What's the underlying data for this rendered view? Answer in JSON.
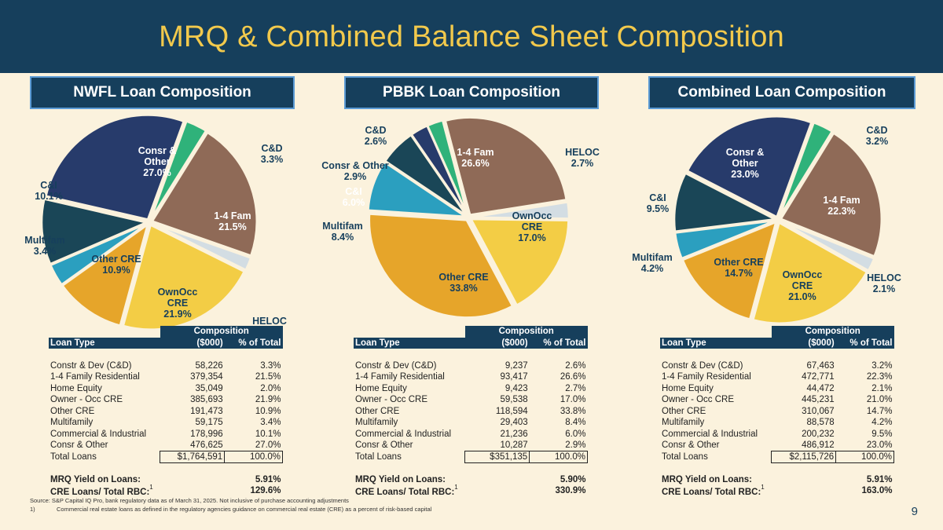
{
  "title": "MRQ & Combined Balance Sheet Composition",
  "colors": {
    "navy": "#163f5c",
    "gold": "#f2c94c",
    "C&D": "#2fb27a",
    "1-4 Fam": "#8f6a57",
    "HELOC": "#d3dde3",
    "OwnOcc CRE": "#f3cd45",
    "Other CRE": "#e6a52a",
    "Multifam": "#2b9fbf",
    "C&I": "#1a4657",
    "Consr & Other": "#273b6b"
  },
  "table_headers": {
    "composition": "Composition",
    "loan_type": "Loan Type",
    "amount": "($000)",
    "pct": "% of Total",
    "mrq_yield": "MRQ Yield on Loans:",
    "cre_rbc": "CRE Loans/ Total RBC:",
    "footnote_ref": "1"
  },
  "panels": [
    {
      "title": "NWFL Loan Composition",
      "rows": [
        {
          "type": "Constr & Dev (C&D)",
          "amount": "58,226",
          "pct": "3.3%"
        },
        {
          "type": "1-4 Family Residential",
          "amount": "379,354",
          "pct": "21.5%"
        },
        {
          "type": "Home Equity",
          "amount": "35,049",
          "pct": "2.0%"
        },
        {
          "type": "Owner - Occ CRE",
          "amount": "385,693",
          "pct": "21.9%"
        },
        {
          "type": "Other CRE",
          "amount": "191,473",
          "pct": "10.9%"
        },
        {
          "type": "Multifamily",
          "amount": "59,175",
          "pct": "3.4%"
        },
        {
          "type": "Commercial & Industrial",
          "amount": "178,996",
          "pct": "10.1%"
        },
        {
          "type": "Consr & Other",
          "amount": "476,625",
          "pct": "27.0%"
        }
      ],
      "total": {
        "type": "Total Loans",
        "amount": "$1,764,591",
        "pct": "100.0%"
      },
      "mrq_yield": "5.91%",
      "cre_rbc": "129.6%"
    },
    {
      "title": "PBBK Loan Composition",
      "rows": [
        {
          "type": "Constr & Dev (C&D)",
          "amount": "9,237",
          "pct": "2.6%"
        },
        {
          "type": "1-4 Family Residential",
          "amount": "93,417",
          "pct": "26.6%"
        },
        {
          "type": "Home Equity",
          "amount": "9,423",
          "pct": "2.7%"
        },
        {
          "type": "Owner - Occ CRE",
          "amount": "59,538",
          "pct": "17.0%"
        },
        {
          "type": "Other CRE",
          "amount": "118,594",
          "pct": "33.8%"
        },
        {
          "type": "Multifamily",
          "amount": "29,403",
          "pct": "8.4%"
        },
        {
          "type": "Commercial & Industrial",
          "amount": "21,236",
          "pct": "6.0%"
        },
        {
          "type": "Consr & Other",
          "amount": "10,287",
          "pct": "2.9%"
        }
      ],
      "total": {
        "type": "Total Loans",
        "amount": "$351,135",
        "pct": "100.0%"
      },
      "mrq_yield": "5.90%",
      "cre_rbc": "330.9%"
    },
    {
      "title": "Combined Loan Composition",
      "rows": [
        {
          "type": "Constr & Dev (C&D)",
          "amount": "67,463",
          "pct": "3.2%"
        },
        {
          "type": "1-4 Family Residential",
          "amount": "472,771",
          "pct": "22.3%"
        },
        {
          "type": "Home Equity",
          "amount": "44,472",
          "pct": "2.1%"
        },
        {
          "type": "Owner - Occ CRE",
          "amount": "445,231",
          "pct": "21.0%"
        },
        {
          "type": "Other CRE",
          "amount": "310,067",
          "pct": "14.7%"
        },
        {
          "type": "Multifamily",
          "amount": "88,578",
          "pct": "4.2%"
        },
        {
          "type": "Commercial & Industrial",
          "amount": "200,232",
          "pct": "9.5%"
        },
        {
          "type": "Consr & Other",
          "amount": "486,912",
          "pct": "23.0%"
        }
      ],
      "total": {
        "type": "Total Loans",
        "amount": "$2,115,726",
        "pct": "100.0%"
      },
      "mrq_yield": "5.91%",
      "cre_rbc": "163.0%"
    }
  ],
  "chart_data": [
    {
      "type": "pie",
      "title": "NWFL Loan Composition",
      "slices": [
        {
          "label": [
            "C&D"
          ],
          "value": 3.3
        },
        {
          "label": [
            "1-4 Fam"
          ],
          "value": 21.5
        },
        {
          "label": [
            "HELOC"
          ],
          "value": 2.0
        },
        {
          "label": [
            "OwnOcc",
            "CRE"
          ],
          "value": 21.9
        },
        {
          "label": [
            "Other CRE"
          ],
          "value": 10.9
        },
        {
          "label": [
            "Multifam"
          ],
          "value": 3.4
        },
        {
          "label": [
            "C&I"
          ],
          "value": 10.1
        },
        {
          "label": [
            "Consr &",
            "Other"
          ],
          "value": 27.0
        }
      ]
    },
    {
      "type": "pie",
      "title": "PBBK Loan Composition",
      "slices": [
        {
          "label": [
            "C&D"
          ],
          "value": 2.6
        },
        {
          "label": [
            "1-4 Fam"
          ],
          "value": 26.6
        },
        {
          "label": [
            "HELOC"
          ],
          "value": 2.7
        },
        {
          "label": [
            "OwnOcc",
            "CRE"
          ],
          "value": 17.0
        },
        {
          "label": [
            "Other CRE"
          ],
          "value": 33.8
        },
        {
          "label": [
            "Multifam"
          ],
          "value": 8.4
        },
        {
          "label": [
            "C&I"
          ],
          "value": 6.0
        },
        {
          "label": [
            "Consr & Other"
          ],
          "value": 2.9
        }
      ]
    },
    {
      "type": "pie",
      "title": "Combined Loan Composition",
      "slices": [
        {
          "label": [
            "C&D"
          ],
          "value": 3.2
        },
        {
          "label": [
            "1-4 Fam"
          ],
          "value": 22.3
        },
        {
          "label": [
            "HELOC"
          ],
          "value": 2.1
        },
        {
          "label": [
            "OwnOcc",
            "CRE"
          ],
          "value": 21.0
        },
        {
          "label": [
            "Other CRE"
          ],
          "value": 14.7
        },
        {
          "label": [
            "Multifam"
          ],
          "value": 4.2
        },
        {
          "label": [
            "C&I"
          ],
          "value": 9.5
        },
        {
          "label": [
            "Consr &",
            "Other"
          ],
          "value": 23.0
        }
      ]
    }
  ],
  "source": "Source: S&P Capital IQ Pro, bank regulatory data as of March 31, 2025. Not inclusive of purchase accounting adjustments",
  "footnote_num": "1)",
  "footnote": "Commercial real estate loans as defined in the regulatory agencies guidance on commercial real estate (CRE) as a percent of risk-based capital",
  "page_number": "9"
}
